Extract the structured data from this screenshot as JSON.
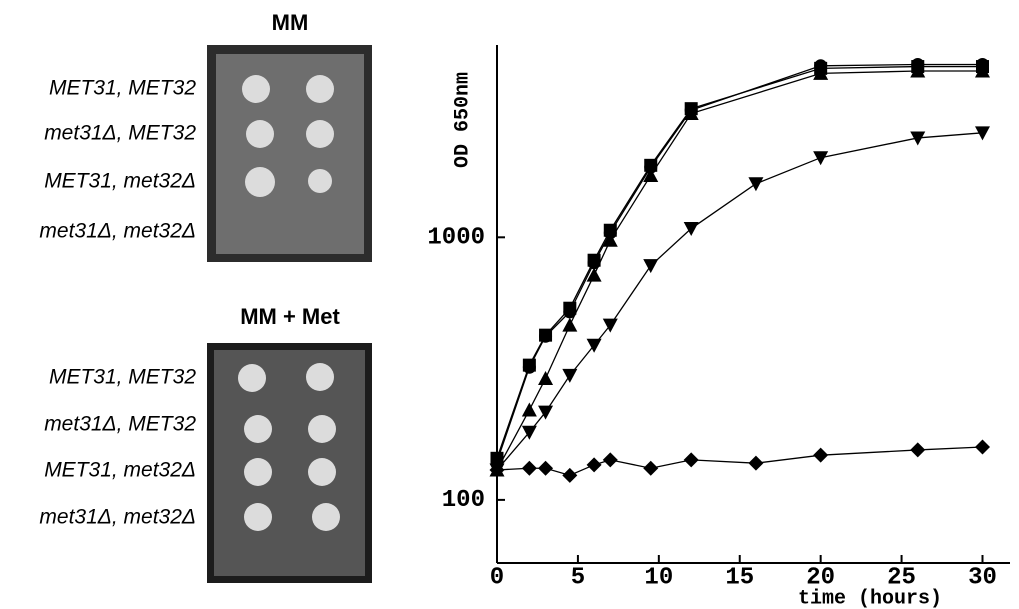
{
  "plates": [
    {
      "title": "MM",
      "rows": [
        "MET31, MET32",
        "met31Δ, MET32",
        "MET31, met32Δ",
        "met31Δ, met32Δ"
      ]
    },
    {
      "title": "MM + Met",
      "rows": [
        "MET31, MET32",
        "met31Δ, MET32",
        "MET31, met32Δ",
        "met31Δ, met32Δ"
      ]
    }
  ],
  "chart_data": {
    "type": "line",
    "x_label": "time (hours)",
    "y_label": "OD 650nm",
    "xlim": [
      0,
      31.7
    ],
    "xticks": [
      0,
      5,
      10,
      15,
      20,
      25,
      30
    ],
    "ylim": [
      57.5,
      5400
    ],
    "yticks": [
      100,
      1000
    ],
    "log_y": true,
    "series": [
      {
        "color": "#000000",
        "marker": "circle",
        "x": [
          0,
          2,
          3,
          4.5,
          6,
          7,
          9.5,
          12,
          20,
          26,
          30
        ],
        "values": [
          140,
          320,
          420,
          520,
          800,
          1040,
          1850,
          3050,
          4500,
          4550,
          4550
        ]
      },
      {
        "color": "#000000",
        "marker": "square",
        "x": [
          0,
          2,
          3,
          4.5,
          6,
          7,
          9.5,
          12,
          20,
          26,
          30
        ],
        "values": [
          144,
          326,
          424,
          537,
          818,
          1064,
          1880,
          3090,
          4400,
          4470,
          4470
        ]
      },
      {
        "color": "#000000",
        "marker": "triangle-up",
        "x": [
          0,
          2,
          3,
          4.5,
          6,
          7,
          9.5,
          12,
          20,
          26,
          30
        ],
        "values": [
          130,
          220,
          290,
          463,
          718,
          975,
          1720,
          2960,
          4210,
          4300,
          4300
        ]
      },
      {
        "color": "#000000",
        "marker": "triangle-down",
        "x": [
          0,
          2,
          3,
          4.5,
          6,
          7,
          9.5,
          12,
          16,
          20,
          26,
          30
        ],
        "values": [
          130,
          181,
          216,
          298,
          388,
          463,
          780,
          1080,
          1600,
          2010,
          2390,
          2500
        ]
      },
      {
        "color": "#000000",
        "marker": "diamond",
        "x": [
          0,
          2,
          3,
          4.5,
          6,
          7,
          9.5,
          12,
          16,
          20,
          26,
          30
        ],
        "values": [
          130,
          132,
          132,
          124,
          136,
          142,
          132,
          142,
          138,
          148,
          155,
          159
        ]
      }
    ]
  }
}
